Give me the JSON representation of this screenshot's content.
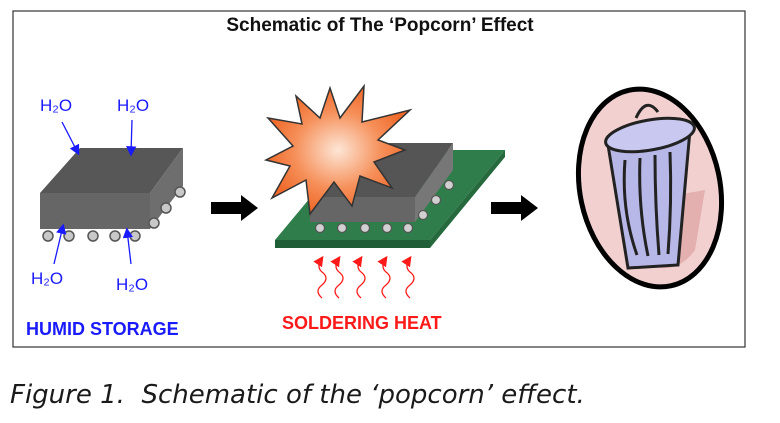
{
  "diagram": {
    "title": "Schematic of The ‘Popcorn’ Effect",
    "stage1": {
      "water_label": "H₂O",
      "label": "HUMID STORAGE"
    },
    "stage2": {
      "label": "SOLDERING HEAT"
    },
    "stage3": {
      "icon": "trash-can-icon"
    },
    "colors": {
      "water": "#1a1aff",
      "heat": "#ff1a1a",
      "chip": "#555555",
      "pcb": "#2e7d4a",
      "explosion": "#f47a3a"
    }
  },
  "caption": "Figure 1.  Schematic of the ‘popcorn’ effect."
}
